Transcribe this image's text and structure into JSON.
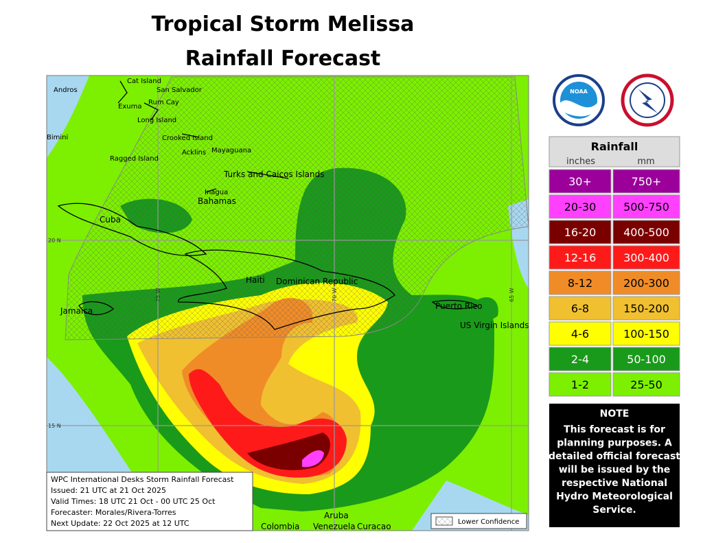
{
  "title": [
    "Tropical Storm Melissa",
    "Rainfall Forecast"
  ],
  "logos": {
    "noaa": "NOAA"
  },
  "map": {
    "places": [
      "Cat Island",
      "San Salvador",
      "Andros",
      "Exuma",
      "Rum Cay",
      "Long Island",
      "Bimini",
      "Crooked Island",
      "Acklins",
      "Mayaguana",
      "Ragged Island",
      "Turks and Caicos Islands",
      "Inagua",
      "Bahamas",
      "Cuba",
      "Haiti",
      "Dominican Republic",
      "Jamaica",
      "Puerto Rico",
      "US Virgin Islands",
      "Aruba",
      "Colombia",
      "Venezuela",
      "Curacao"
    ],
    "grid_labels": [
      "20 N",
      "15 N",
      "75 W",
      "70 W",
      "65 W"
    ],
    "info": [
      "WPC International Desks Storm Rainfall Forecast",
      "Issued: 21 UTC at 21 Oct 2025",
      "Valid Times: 18 UTC 21 Oct - 00 UTC 25 Oct",
      "Forecaster: Morales/Rivera-Torres",
      "Next Update: 22 Oct 2025 at 12 UTC"
    ],
    "lower_confidence": "Lower Confidence"
  },
  "legend": {
    "title": "Rainfall",
    "units": [
      "inches",
      "mm"
    ],
    "rows": [
      {
        "inches": "30+",
        "mm": "750+",
        "color": "#9b009b"
      },
      {
        "inches": "20-30",
        "mm": "500-750",
        "color": "#ff40ff"
      },
      {
        "inches": "16-20",
        "mm": "400-500",
        "color": "#7a0000"
      },
      {
        "inches": "12-16",
        "mm": "300-400",
        "color": "#ff1a1a"
      },
      {
        "inches": "8-12",
        "mm": "200-300",
        "color": "#f08c28"
      },
      {
        "inches": "6-8",
        "mm": "150-200",
        "color": "#f0c030"
      },
      {
        "inches": "4-6",
        "mm": "100-150",
        "color": "#ffff00"
      },
      {
        "inches": "2-4",
        "mm": "50-100",
        "color": "#1a9a1a"
      },
      {
        "inches": "1-2",
        "mm": "25-50",
        "color": "#7cf000"
      }
    ]
  },
  "note": {
    "title": "NOTE",
    "lines": [
      "This forecast is for",
      "planning purposes. A",
      "detailed official forecast",
      "will be issued by the",
      "respective National",
      "Hydro Meteorological",
      "Service."
    ]
  }
}
